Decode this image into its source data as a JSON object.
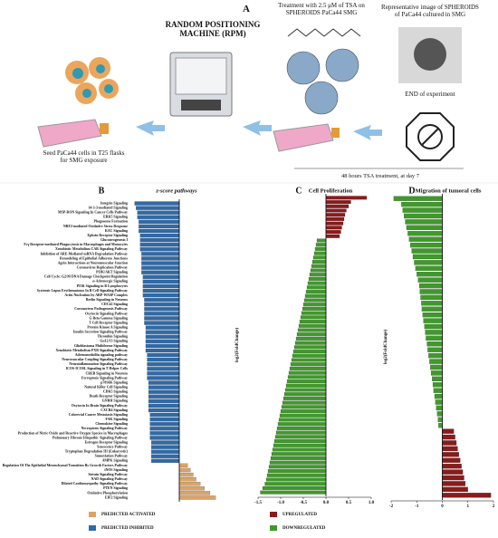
{
  "panel_a": {
    "label": "A",
    "rpm": "RANDOM POSITIONING MACHINE (RPM)",
    "treatment": "Treatment with 2.5 μM of TSA on SPHEROIDS PaCa44 SMG",
    "representative": "Representative image of SPHEROIDS of PaCa44 cultured in SMG",
    "end": "END of experiment",
    "seed": "Seed PaCa44 cells in T25 flasks for SMG exposure",
    "duration": "48 hours TSA treatment, at day 7"
  },
  "chart_data": [
    {
      "panel": "B",
      "type": "bar",
      "orientation": "horizontal",
      "title": "z-score pathways",
      "categories": [
        "Integrin Signaling",
        "14-3-3-mediated Signaling",
        "MSP-RON Signaling In Cancer Cells Pathway",
        "ERK5 Signaling",
        "Phagosome Formation",
        "NRF2-mediated Oxidative Stress Response",
        "RAC Signaling",
        "Ephrin Receptor Signaling",
        "Gluconeogenesis I",
        "Fcγ Receptor-mediated Phagocytosis in Macrophages and Monocytes",
        "Xenobiotic Metabolism CAR Signaling Pathway",
        "Inhibition of ARE-Mediated mRNA Degradation Pathway",
        "Remodeling of Epithelial Adherens Junctions",
        "Agrin Interactions at Neuromuscular Junction",
        "Coronavirus Replication Pathway",
        "PI3K/AKT Signaling",
        "Cell Cycle: G2/M DNA Damage Checkpoint Regulation",
        "α-Adrenergic Signaling",
        "PI3K Signaling in B Lymphocytes",
        "Systemic Lupus Erythematosus In B Cell Signaling Pathway",
        "Actin Nucleation by ARP-WASP Complex",
        "Reelin Signaling in Neurons",
        "CDC42 Signaling",
        "Coronavirus Pathogenesis Pathway",
        "Oxytocin Signaling Pathway",
        "G Beta Gamma Signaling",
        "T Cell Receptor Signaling",
        "Protein Kinase A Signaling",
        "Insulin Secretion Signaling Pathway",
        "Thrombin Signaling",
        "Gα12/13 Signaling",
        "Glioblastoma Multiforme Signaling",
        "Xenobiotic Metabolism PXR Signaling Pathway",
        "Adrenomedullin signaling pathway",
        "Neurovascular Coupling Signaling Pathway",
        "Neuroinflammation Signaling Pathway",
        "ICOS-ICOSL Signaling in T Helper Cells",
        "CREB Signaling in Neurons",
        "Ferroptosis Signaling Pathway",
        "p70S6K Signaling",
        "Natural Killer Cell Signaling",
        "CDK5 Signaling",
        "Death Receptor Signaling",
        "GNRH Signaling",
        "Oxytocin In Brain Signaling Pathway",
        "CXCR4 Signaling",
        "Colorectal Cancer Metastasis Signaling",
        "FAK Signaling",
        "Chemokine Signaling",
        "Necroptosis Signaling Pathway",
        "Production of Nitric Oxide and Reactive Oxygen Species in Macrophages",
        "Pulmonary Fibrosis Idiopathic Signaling Pathway",
        "Estrogen Receptor Signaling",
        "Senescence Pathway",
        "Tryptophan Degradation III (Eukaryotic)",
        "Sumoylation Pathway",
        "AMPK Signaling",
        "Regulation Of The Epithelial Mesenchymal Transition By Growth Factors Pathway",
        "iNOS Signaling",
        "Sirtuin Signaling Pathway",
        "NAD Signaling Pathway",
        "Dilated Cardiomyopathy Signaling Pathway",
        "PTEN Signaling",
        "Oxidative Phosphorylation",
        "EIF2 Signaling"
      ],
      "values": [
        -3.2,
        -3.1,
        -3.0,
        -3.0,
        -2.9,
        -2.9,
        -2.9,
        -2.8,
        -2.8,
        -2.8,
        -2.8,
        -2.7,
        -2.7,
        -2.7,
        -2.7,
        -2.7,
        -2.6,
        -2.6,
        -2.6,
        -2.6,
        -2.6,
        -2.5,
        -2.5,
        -2.5,
        -2.5,
        -2.5,
        -2.5,
        -2.4,
        -2.4,
        -2.4,
        -2.4,
        -2.4,
        -2.4,
        -2.3,
        -2.3,
        -2.3,
        -2.3,
        -2.3,
        -2.3,
        -2.2,
        -2.2,
        -2.2,
        -2.2,
        -2.2,
        -2.2,
        -2.2,
        -2.1,
        -2.1,
        -2.1,
        -2.1,
        -2.1,
        -2.1,
        -2.0,
        -2.0,
        -2.0,
        -2.0,
        -2.0,
        0.6,
        0.8,
        1.0,
        1.2,
        1.5,
        1.8,
        2.2,
        2.6
      ],
      "xlim": [
        -3.5,
        3.5
      ],
      "legend": [
        {
          "name": "PREDICTED ACTIVATED",
          "color": "#d9a46a"
        },
        {
          "name": "PREDICTED INHIBITED",
          "color": "#2f6aa8"
        }
      ]
    },
    {
      "panel": "C",
      "type": "bar",
      "orientation": "horizontal",
      "title": "Cell Proliferation",
      "ylabel": "log2(FoldChange)",
      "categories": [
        null,
        null,
        null,
        null,
        null,
        null,
        null,
        null,
        null,
        null,
        null,
        null,
        null,
        null,
        null,
        null,
        null,
        null,
        null,
        null,
        null,
        null,
        null,
        null,
        null,
        null,
        null,
        null,
        null,
        null,
        null,
        null,
        null,
        null,
        null,
        null,
        null,
        null,
        null,
        null,
        null,
        null,
        null,
        null,
        null,
        null,
        null,
        null,
        null,
        null,
        null,
        null,
        null,
        null,
        null,
        null,
        null,
        null,
        null,
        null,
        null,
        null,
        null,
        null,
        null,
        null,
        null,
        null,
        null,
        null
      ],
      "values": [
        0.9,
        0.55,
        0.5,
        0.45,
        0.42,
        0.4,
        0.38,
        0.35,
        0.33,
        0.3,
        -0.2,
        -0.22,
        -0.24,
        -0.26,
        -0.28,
        -0.3,
        -0.32,
        -0.34,
        -0.36,
        -0.38,
        -0.4,
        -0.42,
        -0.44,
        -0.46,
        -0.48,
        -0.5,
        -0.52,
        -0.54,
        -0.56,
        -0.58,
        -0.6,
        -0.62,
        -0.64,
        -0.66,
        -0.68,
        -0.7,
        -0.72,
        -0.74,
        -0.76,
        -0.78,
        -0.8,
        -0.82,
        -0.84,
        -0.86,
        -0.88,
        -0.9,
        -0.92,
        -0.94,
        -0.96,
        -0.98,
        -1.0,
        -1.02,
        -1.04,
        -1.06,
        -1.08,
        -1.1,
        -1.12,
        -1.14,
        -1.16,
        -1.18,
        -1.2,
        -1.22,
        -1.24,
        -1.26,
        -1.28,
        -1.3,
        -1.32,
        -1.35,
        -1.4,
        -1.45
      ],
      "xlim": [
        -1.5,
        1.0
      ],
      "xticks": [
        -1.5,
        {
          "value": -1.0,
          "label": "-1.0"
        },
        -0.5,
        {
          "value": 0,
          "label": "0.0"
        },
        0.5,
        {
          "value": 1.0,
          "label": "1.0"
        }
      ],
      "legend": [
        {
          "name": "UPREGULATED",
          "color": "#8b1a1a"
        },
        {
          "name": "DOWNREGULATED",
          "color": "#3f9a2a"
        }
      ]
    },
    {
      "panel": "D",
      "type": "bar",
      "orientation": "horizontal",
      "title": "Migration of tumoral cells",
      "ylabel": "log2(FoldChange)",
      "categories": [
        null,
        null,
        null,
        null,
        null,
        null,
        null,
        null,
        null,
        null,
        null,
        null,
        null,
        null,
        null,
        null,
        null,
        null,
        null,
        null,
        null,
        null,
        null,
        null,
        null,
        null,
        null,
        null,
        null,
        null,
        null,
        null,
        null,
        null,
        null,
        null,
        null,
        null,
        null,
        null,
        null,
        null,
        null,
        null,
        null,
        null,
        null,
        null,
        null,
        null,
        null,
        null
      ],
      "values": [
        -1.9,
        -1.6,
        -1.55,
        -1.5,
        -1.45,
        -1.4,
        -1.35,
        -1.3,
        -1.25,
        -1.2,
        -1.15,
        -1.1,
        -1.05,
        -1.0,
        -0.95,
        -0.9,
        -0.88,
        -0.85,
        -0.82,
        -0.8,
        -0.77,
        -0.74,
        -0.7,
        -0.67,
        -0.64,
        -0.6,
        -0.57,
        -0.54,
        -0.5,
        -0.47,
        -0.44,
        -0.4,
        -0.37,
        -0.34,
        -0.3,
        -0.27,
        -0.24,
        -0.2,
        -0.17,
        -0.15,
        0.45,
        0.5,
        0.55,
        0.6,
        0.65,
        0.7,
        0.75,
        0.8,
        0.85,
        0.9,
        1.0,
        1.9
      ],
      "xlim": [
        -2,
        2
      ],
      "xticks": [
        -2,
        -1,
        0,
        1,
        2
      ],
      "colors": {
        "positive": "#8b1a1a",
        "negative": "#3f9a2a"
      }
    }
  ]
}
